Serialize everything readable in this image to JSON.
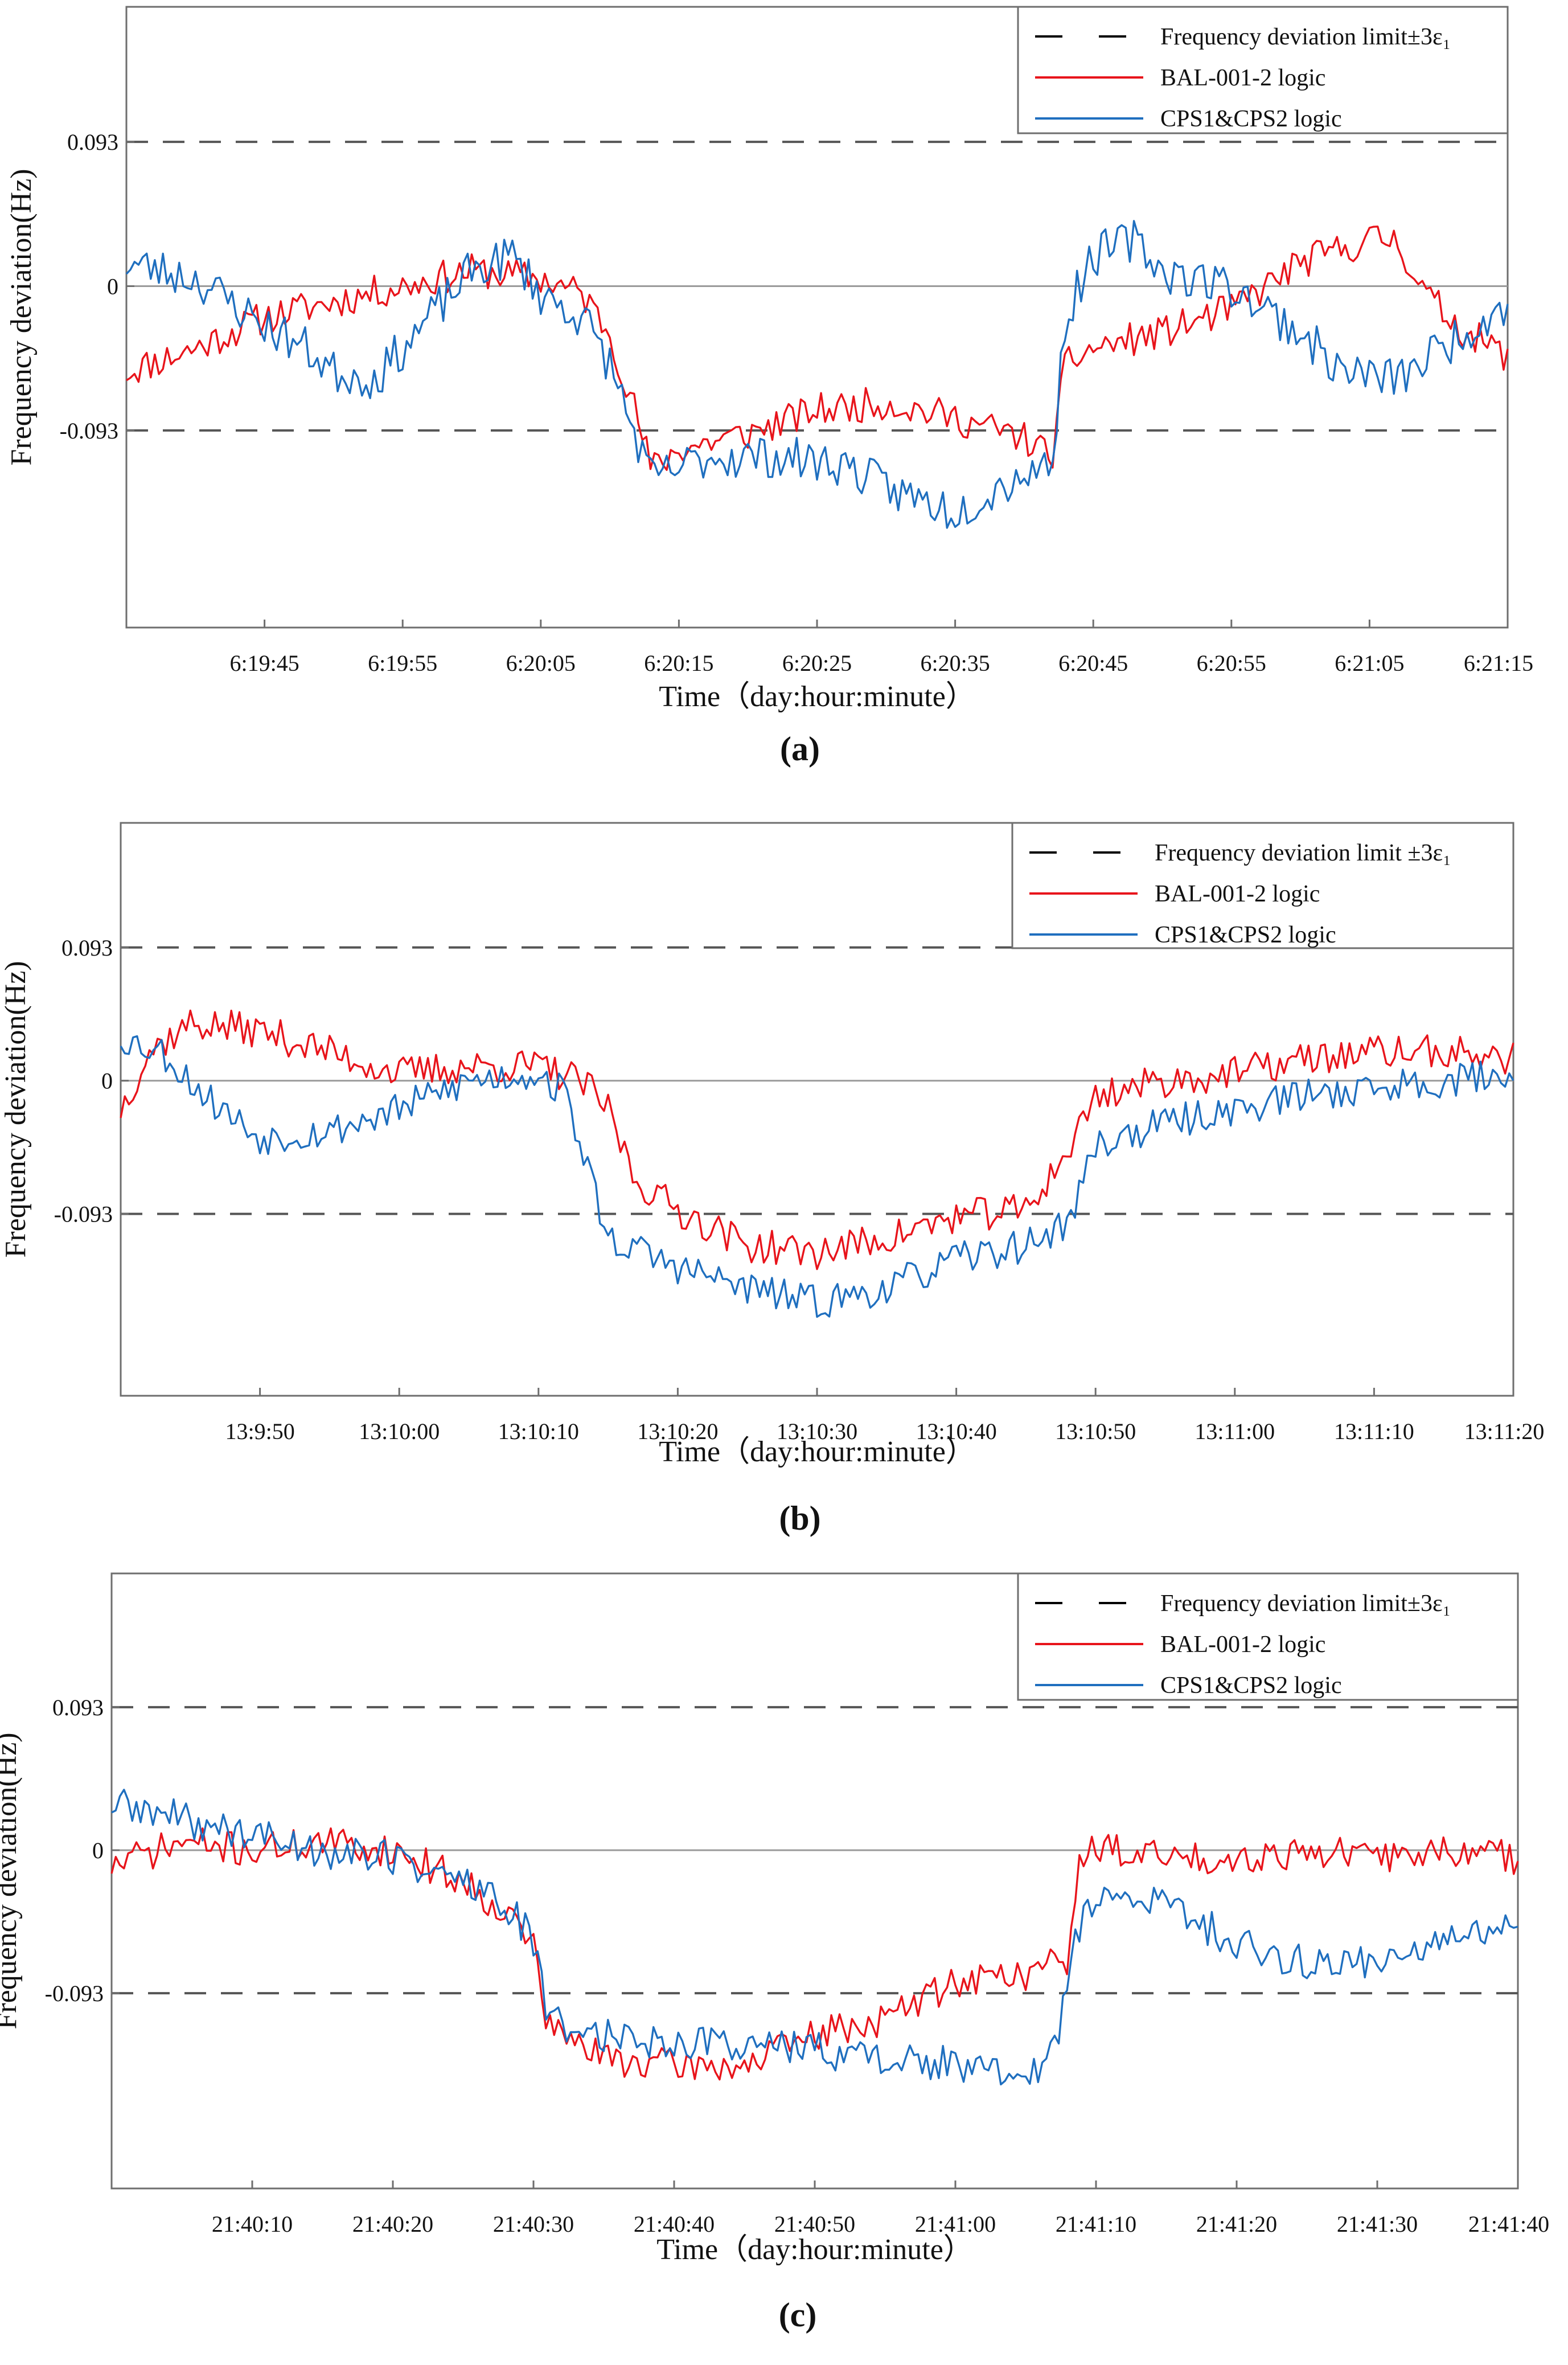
{
  "figure_panels": [
    "(a)",
    "(b)",
    "(c)"
  ],
  "chart_data": [
    {
      "type": "line",
      "panel_label": "a",
      "ylabel": "Frequency deviation(Hz)",
      "xlabel": "Time（day:hour:minute）",
      "x_unit": "seconds",
      "xlim": [
        0,
        100
      ],
      "ylim": [
        -0.22,
        0.18
      ],
      "yticks": [
        {
          "v": 0.093,
          "label": "0.093"
        },
        {
          "v": 0,
          "label": "0"
        },
        {
          "v": -0.093,
          "label": "-0.093"
        }
      ],
      "xticks": [
        {
          "v": 10,
          "label": "6:19:45"
        },
        {
          "v": 20,
          "label": "6:19:55"
        },
        {
          "v": 30,
          "label": "6:20:05"
        },
        {
          "v": 40,
          "label": "6:20:15"
        },
        {
          "v": 50,
          "label": "6:20:25"
        },
        {
          "v": 60,
          "label": "6:20:35"
        },
        {
          "v": 70,
          "label": "6:20:45"
        },
        {
          "v": 80,
          "label": "6:20:55"
        },
        {
          "v": 90,
          "label": "6:21:05"
        },
        {
          "v": 100,
          "label": "6:21:15"
        }
      ],
      "limit_lines": [
        0.093,
        -0.093
      ],
      "zero_line": 0,
      "legend": [
        {
          "name": "Frequency deviation limit±3ε₁",
          "style": "dashed",
          "color": "#000000"
        },
        {
          "name": "BAL-001-2 logic",
          "style": "solid",
          "color": "#e8141b"
        },
        {
          "name": "CPS1&CPS2 logic",
          "style": "solid",
          "color": "#1f6fbf"
        }
      ],
      "series": [
        {
          "name": "BAL-001-2 logic",
          "color": "#e8141b",
          "noise": 0.011,
          "seed": 11,
          "points": [
            [
              0,
              -0.055
            ],
            [
              5,
              -0.04
            ],
            [
              10,
              -0.02
            ],
            [
              15,
              -0.01
            ],
            [
              20,
              0.0
            ],
            [
              25,
              0.01
            ],
            [
              30,
              0.005
            ],
            [
              33,
              -0.005
            ],
            [
              35,
              -0.03
            ],
            [
              37,
              -0.085
            ],
            [
              38,
              -0.118
            ],
            [
              40,
              -0.105
            ],
            [
              45,
              -0.095
            ],
            [
              50,
              -0.08
            ],
            [
              55,
              -0.075
            ],
            [
              60,
              -0.085
            ],
            [
              65,
              -0.098
            ],
            [
              67,
              -0.11
            ],
            [
              68,
              -0.05
            ],
            [
              70,
              -0.04
            ],
            [
              75,
              -0.03
            ],
            [
              80,
              -0.015
            ],
            [
              85,
              0.015
            ],
            [
              90,
              0.03
            ],
            [
              92,
              0.03
            ],
            [
              94,
              -0.005
            ],
            [
              97,
              -0.03
            ],
            [
              100,
              -0.045
            ]
          ]
        },
        {
          "name": "CPS1&CPS2 logic",
          "color": "#1f6fbf",
          "noise": 0.014,
          "seed": 23,
          "points": [
            [
              0,
              0.015
            ],
            [
              5,
              0.005
            ],
            [
              10,
              -0.025
            ],
            [
              13,
              -0.04
            ],
            [
              15,
              -0.055
            ],
            [
              18,
              -0.06
            ],
            [
              22,
              -0.02
            ],
            [
              25,
              0.01
            ],
            [
              28,
              0.02
            ],
            [
              30,
              -0.005
            ],
            [
              33,
              -0.02
            ],
            [
              35,
              -0.05
            ],
            [
              37,
              -0.1
            ],
            [
              38,
              -0.125
            ],
            [
              42,
              -0.11
            ],
            [
              47,
              -0.11
            ],
            [
              52,
              -0.115
            ],
            [
              55,
              -0.13
            ],
            [
              60,
              -0.145
            ],
            [
              65,
              -0.12
            ],
            [
              67,
              -0.115
            ],
            [
              68,
              -0.02
            ],
            [
              70,
              0.02
            ],
            [
              73,
              0.03
            ],
            [
              75,
              0.01
            ],
            [
              80,
              0.0
            ],
            [
              85,
              -0.03
            ],
            [
              88,
              -0.055
            ],
            [
              92,
              -0.06
            ],
            [
              96,
              -0.035
            ],
            [
              100,
              -0.01
            ]
          ]
        }
      ]
    },
    {
      "type": "line",
      "panel_label": "b",
      "ylabel": "Frequency deviation(Hz)",
      "xlabel": "Time（day:hour:minute）",
      "x_unit": "seconds",
      "xlim": [
        0,
        100
      ],
      "ylim": [
        -0.22,
        0.18
      ],
      "yticks": [
        {
          "v": 0.093,
          "label": "0.093"
        },
        {
          "v": 0,
          "label": "0"
        },
        {
          "v": -0.093,
          "label": "-0.093"
        }
      ],
      "xticks": [
        {
          "v": 10,
          "label": "13:9:50"
        },
        {
          "v": 20,
          "label": "13:10:00"
        },
        {
          "v": 30,
          "label": "13:10:10"
        },
        {
          "v": 40,
          "label": "13:10:20"
        },
        {
          "v": 50,
          "label": "13:10:30"
        },
        {
          "v": 60,
          "label": "13:10:40"
        },
        {
          "v": 70,
          "label": "13:10:50"
        },
        {
          "v": 80,
          "label": "13:11:00"
        },
        {
          "v": 90,
          "label": "13:11:10"
        },
        {
          "v": 100,
          "label": "13:11:20"
        }
      ],
      "limit_lines": [
        0.093,
        -0.093
      ],
      "zero_line": 0,
      "legend": [
        {
          "name": "Frequency deviation limit ±3ε₁",
          "style": "dashed",
          "color": "#000000"
        },
        {
          "name": "BAL-001-2 logic",
          "style": "solid",
          "color": "#e8141b"
        },
        {
          "name": "CPS1&CPS2 logic",
          "style": "solid",
          "color": "#1f6fbf"
        }
      ],
      "series": [
        {
          "name": "BAL-001-2 logic",
          "color": "#e8141b",
          "noise": 0.012,
          "seed": 37,
          "points": [
            [
              0,
              -0.02
            ],
            [
              2,
              0.02
            ],
            [
              5,
              0.04
            ],
            [
              10,
              0.035
            ],
            [
              15,
              0.02
            ],
            [
              20,
              0.005
            ],
            [
              25,
              0.01
            ],
            [
              30,
              0.01
            ],
            [
              33,
              0.0
            ],
            [
              35,
              -0.02
            ],
            [
              37,
              -0.07
            ],
            [
              40,
              -0.09
            ],
            [
              45,
              -0.115
            ],
            [
              50,
              -0.12
            ],
            [
              55,
              -0.11
            ],
            [
              60,
              -0.095
            ],
            [
              65,
              -0.09
            ],
            [
              68,
              -0.05
            ],
            [
              70,
              -0.01
            ],
            [
              75,
              0.0
            ],
            [
              80,
              0.005
            ],
            [
              85,
              0.015
            ],
            [
              90,
              0.02
            ],
            [
              95,
              0.02
            ],
            [
              100,
              0.015
            ]
          ]
        },
        {
          "name": "CPS1&CPS2 logic",
          "color": "#1f6fbf",
          "noise": 0.012,
          "seed": 53,
          "points": [
            [
              0,
              0.03
            ],
            [
              3,
              0.02
            ],
            [
              6,
              -0.01
            ],
            [
              10,
              -0.04
            ],
            [
              15,
              -0.035
            ],
            [
              20,
              -0.02
            ],
            [
              25,
              0.0
            ],
            [
              30,
              0.005
            ],
            [
              32,
              -0.01
            ],
            [
              35,
              -0.11
            ],
            [
              40,
              -0.13
            ],
            [
              45,
              -0.145
            ],
            [
              50,
              -0.155
            ],
            [
              55,
              -0.145
            ],
            [
              60,
              -0.125
            ],
            [
              65,
              -0.115
            ],
            [
              68,
              -0.1
            ],
            [
              70,
              -0.045
            ],
            [
              75,
              -0.03
            ],
            [
              80,
              -0.02
            ],
            [
              85,
              -0.01
            ],
            [
              90,
              -0.005
            ],
            [
              95,
              0.0
            ],
            [
              100,
              0.005
            ]
          ]
        }
      ]
    },
    {
      "type": "line",
      "panel_label": "c",
      "ylabel": "Frequency deviation(Hz)",
      "xlabel": "Time（day:hour:minute）",
      "x_unit": "seconds",
      "xlim": [
        0,
        100
      ],
      "ylim": [
        -0.22,
        0.18
      ],
      "yticks": [
        {
          "v": 0.093,
          "label": "0.093"
        },
        {
          "v": 0,
          "label": "0"
        },
        {
          "v": -0.093,
          "label": "-0.093"
        }
      ],
      "xticks": [
        {
          "v": 10,
          "label": "21:40:10"
        },
        {
          "v": 20,
          "label": "21:40:20"
        },
        {
          "v": 30,
          "label": "21:40:30"
        },
        {
          "v": 40,
          "label": "21:40:40"
        },
        {
          "v": 50,
          "label": "21:40:50"
        },
        {
          "v": 60,
          "label": "21:41:00"
        },
        {
          "v": 70,
          "label": "21:41:10"
        },
        {
          "v": 80,
          "label": "21:41:20"
        },
        {
          "v": 90,
          "label": "21:41:30"
        },
        {
          "v": 100,
          "label": "21:41:40"
        }
      ],
      "limit_lines": [
        0.093,
        -0.093
      ],
      "zero_line": 0,
      "legend": [
        {
          "name": "Frequency deviation limit±3ε₁",
          "style": "dashed",
          "color": "#000000"
        },
        {
          "name": "BAL-001-2 logic",
          "style": "solid",
          "color": "#e8141b"
        },
        {
          "name": "CPS1&CPS2 logic",
          "style": "solid",
          "color": "#1f6fbf"
        }
      ],
      "series": [
        {
          "name": "BAL-001-2 logic",
          "color": "#e8141b",
          "noise": 0.011,
          "seed": 71,
          "points": [
            [
              0,
              -0.01
            ],
            [
              5,
              0.005
            ],
            [
              10,
              0.0
            ],
            [
              15,
              0.005
            ],
            [
              20,
              0.0
            ],
            [
              25,
              -0.02
            ],
            [
              28,
              -0.04
            ],
            [
              30,
              -0.06
            ],
            [
              31,
              -0.115
            ],
            [
              35,
              -0.135
            ],
            [
              40,
              -0.14
            ],
            [
              45,
              -0.14
            ],
            [
              50,
              -0.12
            ],
            [
              55,
              -0.11
            ],
            [
              60,
              -0.085
            ],
            [
              65,
              -0.08
            ],
            [
              68,
              -0.07
            ],
            [
              69,
              0.0
            ],
            [
              72,
              0.0
            ],
            [
              75,
              -0.005
            ],
            [
              80,
              -0.005
            ],
            [
              85,
              0.0
            ],
            [
              90,
              -0.005
            ],
            [
              95,
              0.0
            ],
            [
              100,
              -0.005
            ]
          ]
        },
        {
          "name": "CPS1&CPS2 logic",
          "color": "#1f6fbf",
          "noise": 0.012,
          "seed": 89,
          "points": [
            [
              0,
              0.03
            ],
            [
              5,
              0.02
            ],
            [
              10,
              0.01
            ],
            [
              15,
              0.0
            ],
            [
              20,
              -0.005
            ],
            [
              25,
              -0.02
            ],
            [
              28,
              -0.035
            ],
            [
              30,
              -0.06
            ],
            [
              31,
              -0.11
            ],
            [
              35,
              -0.12
            ],
            [
              40,
              -0.125
            ],
            [
              45,
              -0.125
            ],
            [
              50,
              -0.13
            ],
            [
              55,
              -0.135
            ],
            [
              60,
              -0.14
            ],
            [
              65,
              -0.15
            ],
            [
              67,
              -0.13
            ],
            [
              69,
              -0.04
            ],
            [
              72,
              -0.03
            ],
            [
              75,
              -0.035
            ],
            [
              80,
              -0.06
            ],
            [
              85,
              -0.075
            ],
            [
              90,
              -0.07
            ],
            [
              95,
              -0.06
            ],
            [
              100,
              -0.05
            ]
          ]
        }
      ]
    }
  ]
}
